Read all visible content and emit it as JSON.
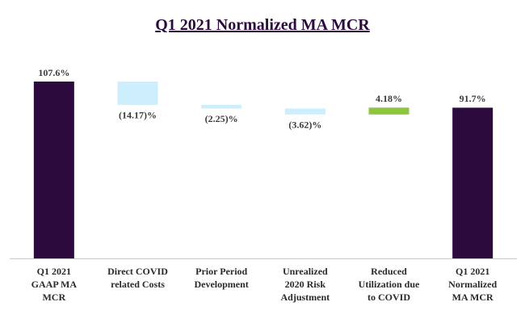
{
  "chart_data": {
    "type": "waterfall",
    "title": "Q1 2021 Normalized MA MCR",
    "categories": [
      "Q1 2021 GAAP MA MCR",
      "Direct COVID related Costs",
      "Prior Period Development",
      "Unrealized 2020 Risk Adjustment",
      "Reduced Utilization due to COVID",
      "Q1 2021 Normalized MA MCR"
    ],
    "measures": [
      "absolute",
      "relative",
      "relative",
      "relative",
      "relative",
      "total"
    ],
    "values": [
      107.6,
      -14.17,
      -2.25,
      -3.62,
      4.18,
      91.7
    ],
    "value_labels": [
      "107.6%",
      "(14.17)%",
      "(2.25)%",
      "(3.62)%",
      "4.18%",
      "91.7%"
    ],
    "colors": [
      "#2d0a3e",
      "#cdeefc",
      "#cdeefc",
      "#cdeefc",
      "#8cc63f",
      "#2d0a3e"
    ]
  }
}
